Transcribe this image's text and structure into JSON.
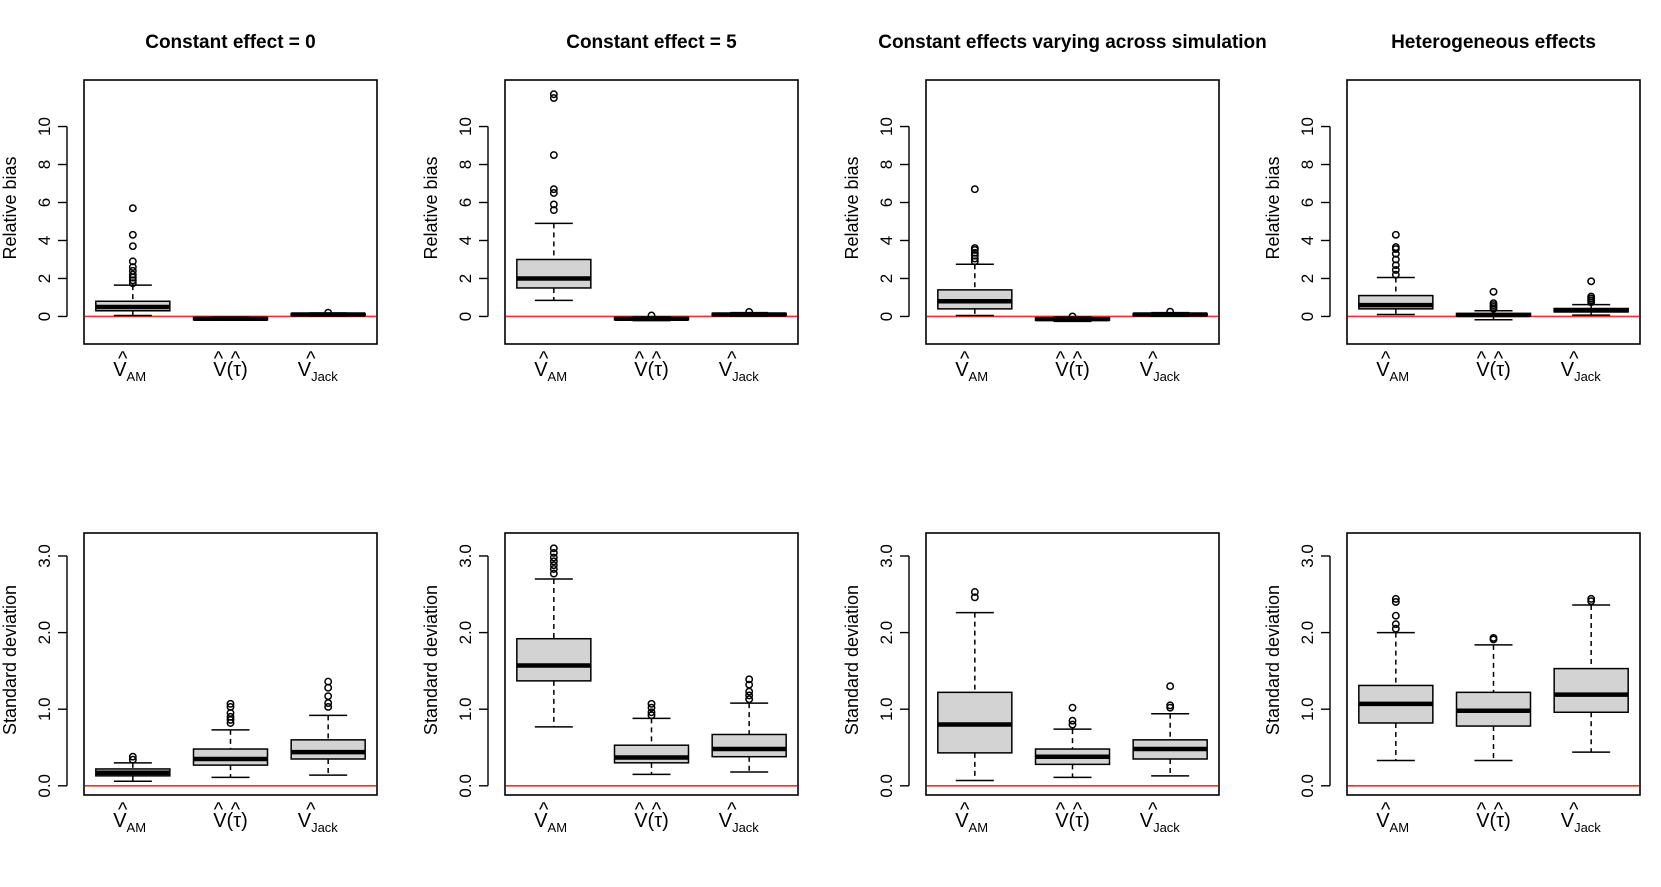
{
  "chart_data": {
    "type": "boxplot",
    "categories": [
      {
        "id": "vam",
        "base": "V",
        "sub": "AM",
        "paren": ""
      },
      {
        "id": "vtau",
        "base": "V",
        "sub": "",
        "paren": "τ"
      },
      {
        "id": "vjack",
        "base": "V",
        "sub": "Jack",
        "paren": ""
      }
    ],
    "hat": "^",
    "rows": [
      {
        "ylabel": "Relative bias",
        "ylim": [
          -1.45,
          12.45
        ],
        "yticks": [
          0,
          2,
          4,
          6,
          8,
          10
        ],
        "tick_labels": [
          "0",
          "2",
          "4",
          "6",
          "8",
          "10"
        ],
        "reference_line": 0
      },
      {
        "ylabel": "Standard deviation",
        "ylim": [
          -0.12,
          3.3
        ],
        "yticks": [
          0,
          1,
          2,
          3
        ],
        "tick_labels": [
          "0.0",
          "1.0",
          "2.0",
          "3.0"
        ],
        "reference_line": 0
      }
    ],
    "panels": [
      {
        "title": "Constant effect = 0",
        "bias": [
          {
            "q1": 0.3,
            "median": 0.5,
            "q3": 0.8,
            "whisker_low": 0.05,
            "whisker_high": 1.65,
            "outliers": [
              1.75,
              1.9,
              2.05,
              2.2,
              2.4,
              2.6,
              2.9,
              3.7,
              4.3,
              5.7
            ]
          },
          {
            "q1": -0.17,
            "median": -0.12,
            "q3": -0.06,
            "whisker_low": -0.2,
            "whisker_high": -0.03,
            "outliers": []
          },
          {
            "q1": 0.06,
            "median": 0.1,
            "q3": 0.15,
            "whisker_low": 0.03,
            "whisker_high": 0.18,
            "outliers": [
              0.2
            ]
          }
        ],
        "sd": [
          {
            "q1": 0.13,
            "median": 0.17,
            "q3": 0.22,
            "whisker_low": 0.06,
            "whisker_high": 0.3,
            "outliers": [
              0.34,
              0.38
            ]
          },
          {
            "q1": 0.27,
            "median": 0.35,
            "q3": 0.48,
            "whisker_low": 0.11,
            "whisker_high": 0.73,
            "outliers": [
              0.82,
              0.86,
              0.9,
              0.95,
              1.03,
              1.07
            ]
          },
          {
            "q1": 0.35,
            "median": 0.44,
            "q3": 0.6,
            "whisker_low": 0.14,
            "whisker_high": 0.92,
            "outliers": [
              1.03,
              1.08,
              1.17,
              1.28,
              1.36
            ]
          }
        ]
      },
      {
        "title": "Constant effect = 5",
        "bias": [
          {
            "q1": 1.5,
            "median": 2.0,
            "q3": 3.0,
            "whisker_low": 0.85,
            "whisker_high": 4.9,
            "outliers": [
              5.6,
              5.9,
              6.5,
              6.7,
              8.5,
              11.5,
              11.7
            ]
          },
          {
            "q1": -0.17,
            "median": -0.12,
            "q3": -0.05,
            "whisker_low": -0.22,
            "whisker_high": -0.02,
            "outliers": [
              0.05
            ]
          },
          {
            "q1": 0.06,
            "median": 0.1,
            "q3": 0.16,
            "whisker_low": 0.02,
            "whisker_high": 0.2,
            "outliers": [
              0.24
            ]
          }
        ],
        "sd": [
          {
            "q1": 1.37,
            "median": 1.57,
            "q3": 1.92,
            "whisker_low": 0.77,
            "whisker_high": 2.7,
            "outliers": [
              2.77,
              2.83,
              2.88,
              2.93,
              2.98,
              3.04,
              3.1
            ]
          },
          {
            "q1": 0.3,
            "median": 0.37,
            "q3": 0.53,
            "whisker_low": 0.15,
            "whisker_high": 0.88,
            "outliers": [
              0.92,
              0.96,
              1.02,
              1.07
            ]
          },
          {
            "q1": 0.38,
            "median": 0.48,
            "q3": 0.67,
            "whisker_low": 0.18,
            "whisker_high": 1.08,
            "outliers": [
              1.13,
              1.18,
              1.23,
              1.32,
              1.39
            ]
          }
        ]
      },
      {
        "title": "Constant effects varying across simulation",
        "bias": [
          {
            "q1": 0.4,
            "median": 0.8,
            "q3": 1.4,
            "whisker_low": 0.05,
            "whisker_high": 2.75,
            "outliers": [
              2.9,
              3.05,
              3.2,
              3.35,
              3.5,
              3.6,
              6.7
            ]
          },
          {
            "q1": -0.2,
            "median": -0.14,
            "q3": -0.07,
            "whisker_low": -0.26,
            "whisker_high": -0.03,
            "outliers": [
              0.0
            ]
          },
          {
            "q1": 0.05,
            "median": 0.1,
            "q3": 0.15,
            "whisker_low": 0.01,
            "whisker_high": 0.2,
            "outliers": [
              0.25
            ]
          }
        ],
        "sd": [
          {
            "q1": 0.43,
            "median": 0.8,
            "q3": 1.22,
            "whisker_low": 0.07,
            "whisker_high": 2.26,
            "outliers": [
              2.46,
              2.53
            ]
          },
          {
            "q1": 0.28,
            "median": 0.38,
            "q3": 0.48,
            "whisker_low": 0.11,
            "whisker_high": 0.74,
            "outliers": [
              0.8,
              0.85,
              1.02
            ]
          },
          {
            "q1": 0.35,
            "median": 0.48,
            "q3": 0.6,
            "whisker_low": 0.13,
            "whisker_high": 0.94,
            "outliers": [
              1.02,
              1.05,
              1.3
            ]
          }
        ]
      },
      {
        "title": "Heterogeneous effects",
        "bias": [
          {
            "q1": 0.4,
            "median": 0.6,
            "q3": 1.1,
            "whisker_low": 0.1,
            "whisker_high": 2.05,
            "outliers": [
              2.2,
              2.45,
              2.7,
              3.0,
              3.3,
              3.55,
              3.65,
              4.3
            ]
          },
          {
            "q1": 0.02,
            "median": 0.08,
            "q3": 0.16,
            "whisker_low": -0.17,
            "whisker_high": 0.3,
            "outliers": [
              0.4,
              0.5,
              0.6,
              0.7,
              1.3
            ]
          },
          {
            "q1": 0.24,
            "median": 0.32,
            "q3": 0.42,
            "whisker_low": 0.07,
            "whisker_high": 0.62,
            "outliers": [
              0.75,
              0.85,
              0.95,
              1.05,
              1.85
            ]
          }
        ],
        "sd": [
          {
            "q1": 0.82,
            "median": 1.07,
            "q3": 1.31,
            "whisker_low": 0.33,
            "whisker_high": 2.0,
            "outliers": [
              2.05,
              2.11,
              2.22,
              2.4,
              2.44
            ]
          },
          {
            "q1": 0.78,
            "median": 0.98,
            "q3": 1.22,
            "whisker_low": 0.33,
            "whisker_high": 1.84,
            "outliers": [
              1.91,
              1.93
            ]
          },
          {
            "q1": 0.96,
            "median": 1.19,
            "q3": 1.53,
            "whisker_low": 0.44,
            "whisker_high": 2.36,
            "outliers": [
              2.41,
              2.44
            ]
          }
        ]
      }
    ]
  },
  "colors": {
    "box_fill": "#d3d3d3",
    "stroke": "#000000",
    "reference_line": "#ff2a2a",
    "background": "#ffffff"
  }
}
